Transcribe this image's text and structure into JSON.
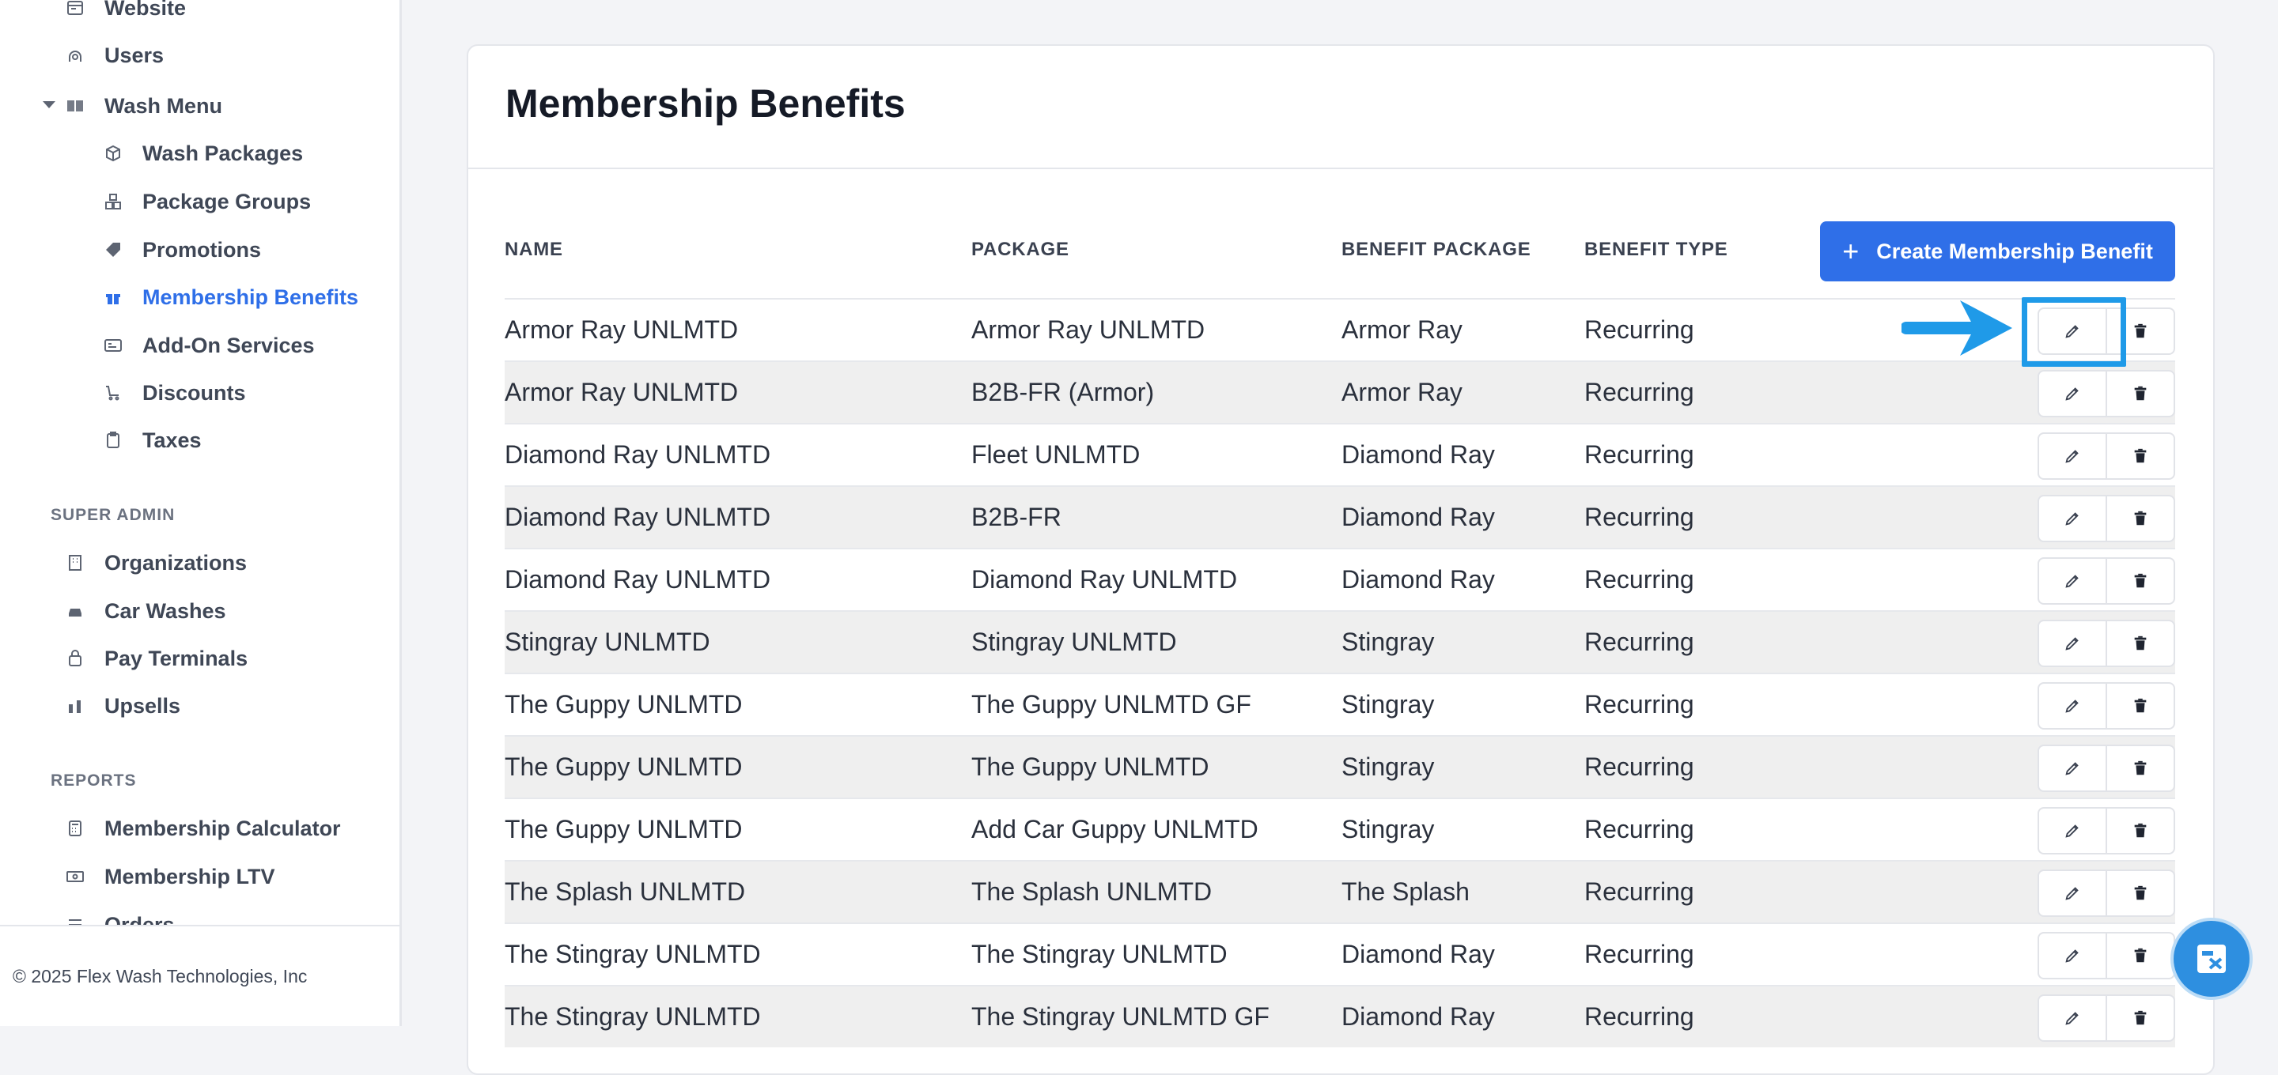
{
  "sidebar": {
    "items": [
      {
        "label": "Website",
        "icon": "website-icon"
      },
      {
        "label": "Users",
        "icon": "users-icon"
      },
      {
        "label": "Wash Menu",
        "icon": "book-icon"
      },
      {
        "label": "Wash Packages",
        "icon": "cube-icon"
      },
      {
        "label": "Package Groups",
        "icon": "cubes-icon"
      },
      {
        "label": "Promotions",
        "icon": "tag-icon"
      },
      {
        "label": "Membership Benefits",
        "icon": "gift-icon",
        "active": true
      },
      {
        "label": "Add-On Services",
        "icon": "card-icon"
      },
      {
        "label": "Discounts",
        "icon": "cart-icon"
      },
      {
        "label": "Taxes",
        "icon": "clipboard-icon"
      },
      {
        "label": "Organizations",
        "icon": "building-icon"
      },
      {
        "label": "Car Washes",
        "icon": "car-icon"
      },
      {
        "label": "Pay Terminals",
        "icon": "terminal-icon"
      },
      {
        "label": "Upsells",
        "icon": "upsell-icon"
      },
      {
        "label": "Membership Calculator",
        "icon": "calculator-icon"
      },
      {
        "label": "Membership LTV",
        "icon": "money-icon"
      },
      {
        "label": "Orders",
        "icon": "orders-icon"
      }
    ],
    "sections": {
      "super_admin": "SUPER ADMIN",
      "reports": "REPORTS"
    },
    "footer": "© 2025 Flex Wash Technologies, Inc"
  },
  "page": {
    "title": "Membership Benefits",
    "create_button": "Create Membership Benefit"
  },
  "table": {
    "headers": [
      "NAME",
      "PACKAGE",
      "BENEFIT PACKAGE",
      "BENEFIT TYPE"
    ],
    "rows": [
      [
        "Armor Ray UNLMTD",
        "Armor Ray UNLMTD",
        "Armor Ray",
        "Recurring"
      ],
      [
        "Armor Ray UNLMTD",
        "B2B-FR (Armor)",
        "Armor Ray",
        "Recurring"
      ],
      [
        "Diamond Ray UNLMTD",
        "Fleet UNLMTD",
        "Diamond Ray",
        "Recurring"
      ],
      [
        "Diamond Ray UNLMTD",
        "B2B-FR",
        "Diamond Ray",
        "Recurring"
      ],
      [
        "Diamond Ray UNLMTD",
        "Diamond Ray UNLMTD",
        "Diamond Ray",
        "Recurring"
      ],
      [
        "Stingray UNLMTD",
        "Stingray UNLMTD",
        "Stingray",
        "Recurring"
      ],
      [
        "The Guppy UNLMTD",
        "The Guppy UNLMTD GF",
        "Stingray",
        "Recurring"
      ],
      [
        "The Guppy UNLMTD",
        "The Guppy UNLMTD",
        "Stingray",
        "Recurring"
      ],
      [
        "The Guppy UNLMTD",
        "Add Car Guppy UNLMTD",
        "Stingray",
        "Recurring"
      ],
      [
        "The Splash UNLMTD",
        "The Splash UNLMTD",
        "The Splash",
        "Recurring"
      ],
      [
        "The Stingray UNLMTD",
        "The Stingray UNLMTD",
        "Diamond Ray",
        "Recurring"
      ],
      [
        "The Stingray UNLMTD",
        "The Stingray UNLMTD GF",
        "Diamond Ray",
        "Recurring"
      ]
    ]
  },
  "colors": {
    "accent": "#2f6fe8",
    "highlight": "#1f9ae8"
  }
}
